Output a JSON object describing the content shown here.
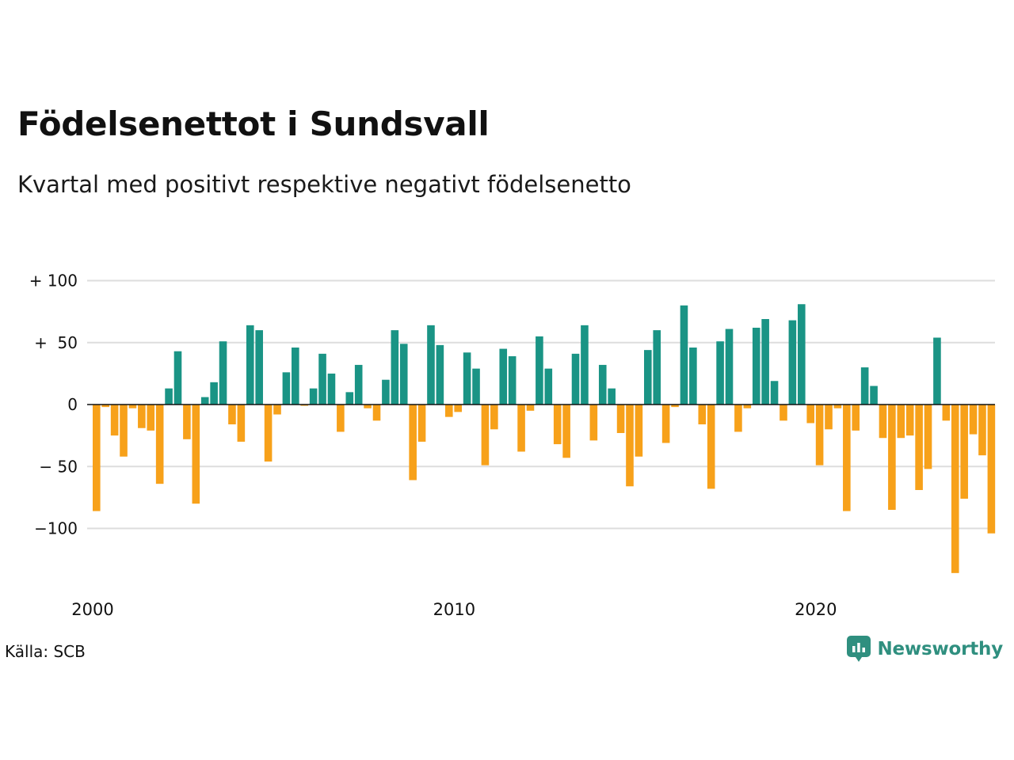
{
  "title": "Födelsenettot i Sundsvall",
  "subtitle": "Kvartal med positivt respektive negativt födelsenetto",
  "source": "Källa: SCB",
  "brand": {
    "name": "Newsworthy",
    "color": "#2f8f7f",
    "icon": "newsworthy-logo-icon"
  },
  "colors": {
    "positive": "#1a9485",
    "negative": "#f7a11a",
    "grid": "#dddddd"
  },
  "chart_data": {
    "type": "bar",
    "x_start": 2000,
    "x_step": 0.25,
    "x_ticks": [
      {
        "value": 2000,
        "label": "2000"
      },
      {
        "value": 2010,
        "label": "2010"
      },
      {
        "value": 2020,
        "label": "2020"
      }
    ],
    "y_ticks": [
      {
        "value": 100,
        "label": "+ 100"
      },
      {
        "value": 50,
        "label": "+  50"
      },
      {
        "value": 0,
        "label": "0"
      },
      {
        "value": -50,
        "label": "− 50"
      },
      {
        "value": -100,
        "label": "−100"
      }
    ],
    "ylim": [
      -136,
      100
    ],
    "grid": true,
    "values": [
      -86,
      -2,
      -25,
      -42,
      -3,
      -19,
      -21,
      -64,
      13,
      43,
      -28,
      -80,
      6,
      18,
      51,
      -16,
      -30,
      64,
      60,
      -46,
      -8,
      26,
      46,
      -1,
      13,
      41,
      25,
      -22,
      10,
      32,
      -3,
      -13,
      20,
      60,
      49,
      -61,
      -30,
      64,
      48,
      -10,
      -6,
      42,
      29,
      -49,
      -20,
      45,
      39,
      -38,
      -5,
      55,
      29,
      -32,
      -43,
      41,
      64,
      -29,
      32,
      13,
      -23,
      -66,
      -42,
      44,
      60,
      -31,
      -2,
      80,
      46,
      -16,
      -68,
      51,
      61,
      -22,
      -3,
      62,
      69,
      19,
      -13,
      68,
      81,
      -15,
      -49,
      -20,
      -3,
      -86,
      -21,
      30,
      15,
      -27,
      -85,
      -27,
      -25,
      -69,
      -52,
      54,
      -13,
      -136,
      -76,
      -24,
      -41,
      -104
    ]
  }
}
